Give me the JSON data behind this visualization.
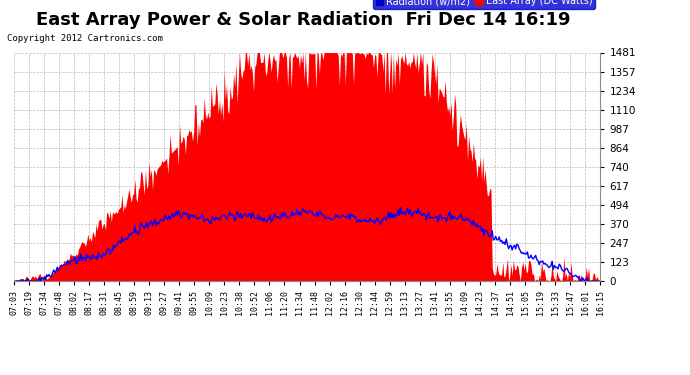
{
  "title": "East Array Power & Solar Radiation  Fri Dec 14 16:19",
  "copyright_text": "Copyright 2012 Cartronics.com",
  "legend_items": [
    {
      "label": "Radiation (w/m2)",
      "facecolor": "#0000cc"
    },
    {
      "label": "East Array (DC Watts)",
      "facecolor": "#ff0000"
    }
  ],
  "ylabel_right_ticks": [
    0.0,
    123.4,
    246.8,
    370.1,
    493.5,
    616.9,
    740.3,
    863.7,
    987.0,
    1110.4,
    1233.8,
    1357.2,
    1480.6
  ],
  "ymax": 1480.6,
  "ymin": 0.0,
  "background_color": "#ffffff",
  "plot_bg_color": "#ffffff",
  "grid_color": "#bbbbbb",
  "area_color": "#ff0000",
  "line_color": "#0000ff",
  "title_fontsize": 13,
  "x_tick_labels": [
    "07:03",
    "07:19",
    "07:34",
    "07:48",
    "08:02",
    "08:17",
    "08:31",
    "08:45",
    "08:59",
    "09:13",
    "09:27",
    "09:41",
    "09:55",
    "10:09",
    "10:23",
    "10:38",
    "10:52",
    "11:06",
    "11:20",
    "11:34",
    "11:48",
    "12:02",
    "12:16",
    "12:30",
    "12:44",
    "12:59",
    "13:13",
    "13:27",
    "13:41",
    "13:55",
    "14:09",
    "14:23",
    "14:37",
    "14:51",
    "15:05",
    "15:19",
    "15:33",
    "15:47",
    "16:01",
    "16:15"
  ],
  "n_ticks": 40
}
